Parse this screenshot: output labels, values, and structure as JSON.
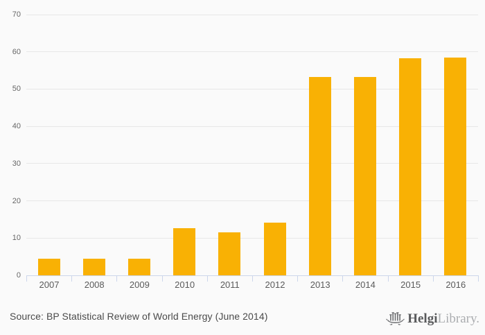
{
  "chart_data": {
    "type": "bar",
    "title": "",
    "xlabel": "",
    "ylabel": "",
    "categories": [
      "2007",
      "2008",
      "2009",
      "2010",
      "2011",
      "2012",
      "2013",
      "2014",
      "2015",
      "2016"
    ],
    "values": [
      4.4,
      4.4,
      4.4,
      12.7,
      11.6,
      14.1,
      53.3,
      53.3,
      58.2,
      58.4
    ],
    "ylim": [
      0,
      70
    ],
    "ytick_interval": 10,
    "ytick_labels": [
      "0",
      "10",
      "20",
      "30",
      "40",
      "50",
      "60",
      "70"
    ],
    "grid": true,
    "legend": false
  },
  "colors": {
    "background": "#fafafa",
    "bar": "#f9b104",
    "gridline": "#e7e7e7",
    "axis_line": "#ccd6eb",
    "y_label": "#666666",
    "x_label": "#5a5a5a",
    "source_text": "#4a4a4a",
    "logo_primary": "#58595b",
    "logo_secondary": "#abadb0"
  },
  "footer": {
    "source_text": "Source: BP Statistical Review of World Energy (June 2014)",
    "logo": {
      "icon": "helgi-ship-icon",
      "brand_primary": "Helgi",
      "brand_secondary": "Library."
    }
  }
}
